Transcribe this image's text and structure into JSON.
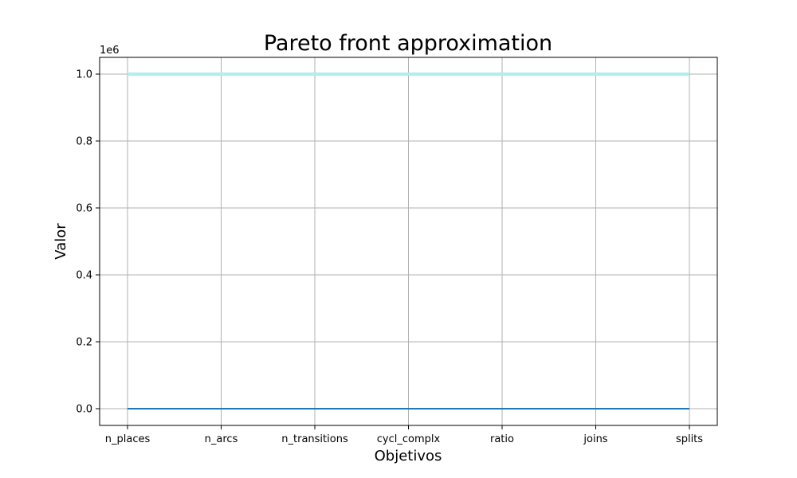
{
  "chart_data": {
    "type": "line",
    "title": "Pareto front approximation",
    "xlabel": "Objetivos",
    "ylabel": "Valor",
    "categories": [
      "n_places",
      "n_arcs",
      "n_transitions",
      "cycl_complx",
      "ratio",
      "joins",
      "splits"
    ],
    "y_offset_label": "1e6",
    "ylim": [
      -50000,
      1050000
    ],
    "yticks": [
      0,
      200000,
      400000,
      600000,
      800000,
      1000000
    ],
    "ytick_labels": [
      "0.0",
      "0.2",
      "0.4",
      "0.6",
      "0.8",
      "1.0"
    ],
    "grid": true,
    "series": [
      {
        "values": [
          1000000,
          1000000,
          1000000,
          1000000,
          1000000,
          1000000,
          1000000
        ],
        "color": "#afeeee"
      },
      {
        "values": [
          0,
          0,
          0,
          0,
          0,
          0,
          0
        ],
        "color": "#1f77b4"
      }
    ]
  }
}
